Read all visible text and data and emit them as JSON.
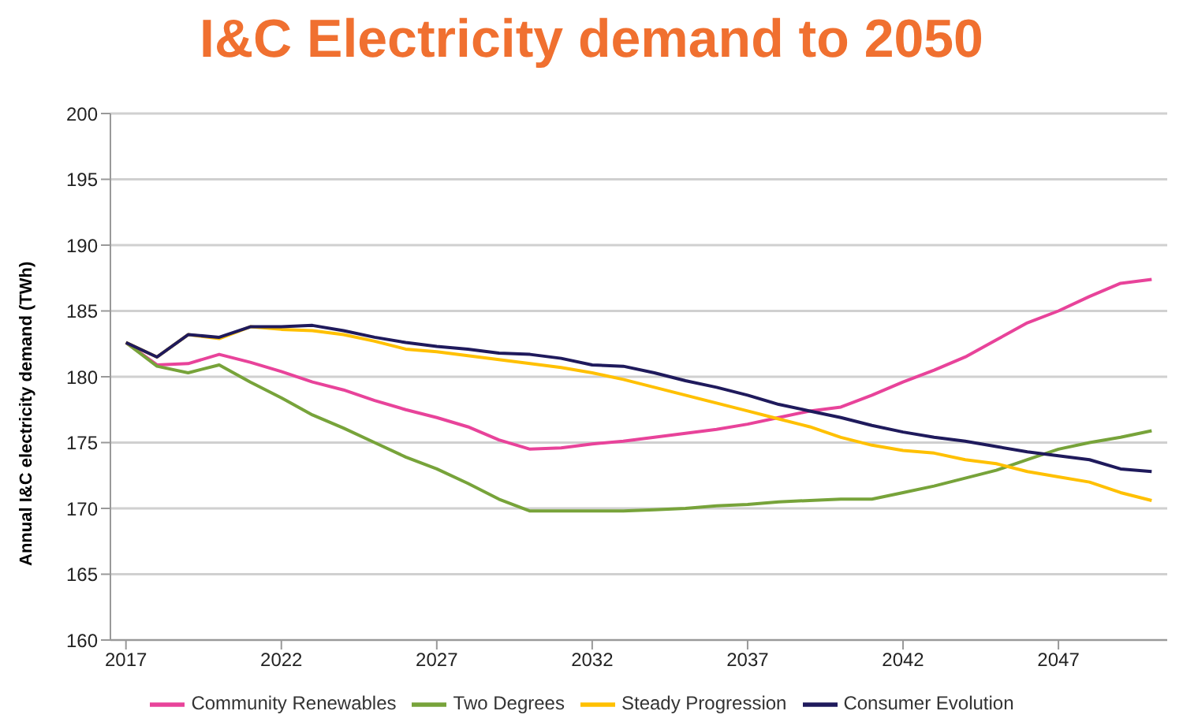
{
  "chart_data": {
    "type": "line",
    "title": "I&C Electricity demand to 2050",
    "ylabel": "Annual I&C electricity demand (TWh)",
    "x": [
      2017,
      2018,
      2019,
      2020,
      2021,
      2022,
      2023,
      2024,
      2025,
      2026,
      2027,
      2028,
      2029,
      2030,
      2031,
      2032,
      2033,
      2034,
      2035,
      2036,
      2037,
      2038,
      2039,
      2040,
      2041,
      2042,
      2043,
      2044,
      2045,
      2046,
      2047,
      2048,
      2049,
      2050
    ],
    "xlim": [
      2016.5,
      2050.5
    ],
    "xticks": [
      2017,
      2022,
      2027,
      2032,
      2037,
      2042,
      2047
    ],
    "ylim": [
      160,
      200
    ],
    "yticks": [
      160,
      165,
      170,
      175,
      180,
      185,
      190,
      195,
      200
    ],
    "grid": "y",
    "legend": "bottom",
    "marker": "none",
    "line_style": "solid",
    "series": [
      {
        "name": "Community Renewables",
        "color": "#e8439a",
        "values": [
          182.6,
          180.9,
          181.0,
          181.7,
          181.1,
          180.4,
          179.6,
          179.0,
          178.2,
          177.5,
          176.9,
          176.2,
          175.2,
          174.5,
          174.6,
          174.9,
          175.1,
          175.4,
          175.7,
          176.0,
          176.4,
          176.9,
          177.4,
          177.7,
          178.6,
          179.6,
          180.5,
          181.5,
          182.8,
          184.1,
          185.0,
          186.1,
          187.1,
          187.4
        ]
      },
      {
        "name": "Two Degrees",
        "color": "#77a33a",
        "values": [
          182.6,
          180.8,
          180.3,
          180.9,
          179.6,
          178.4,
          177.1,
          176.1,
          175.0,
          173.9,
          173.0,
          171.9,
          170.7,
          169.8,
          169.8,
          169.8,
          169.8,
          169.9,
          170.0,
          170.2,
          170.3,
          170.5,
          170.6,
          170.7,
          170.7,
          171.2,
          171.7,
          172.3,
          172.9,
          173.7,
          174.5,
          175.0,
          175.4,
          175.9
        ]
      },
      {
        "name": "Steady Progression",
        "color": "#ffc000",
        "values": [
          182.6,
          181.5,
          183.2,
          182.9,
          183.8,
          183.6,
          183.5,
          183.2,
          182.7,
          182.1,
          181.9,
          181.6,
          181.3,
          181.0,
          180.7,
          180.3,
          179.8,
          179.2,
          178.6,
          178.0,
          177.4,
          176.8,
          176.2,
          175.4,
          174.8,
          174.4,
          174.2,
          173.7,
          173.4,
          172.8,
          172.4,
          172.0,
          171.2,
          170.6
        ]
      },
      {
        "name": "Consumer Evolution",
        "color": "#1f1a5c",
        "values": [
          182.6,
          181.5,
          183.2,
          183.0,
          183.8,
          183.8,
          183.9,
          183.5,
          183.0,
          182.6,
          182.3,
          182.1,
          181.8,
          181.7,
          181.4,
          180.9,
          180.8,
          180.3,
          179.7,
          179.2,
          178.6,
          177.9,
          177.4,
          176.9,
          176.3,
          175.8,
          175.4,
          175.1,
          174.7,
          174.3,
          174.0,
          173.7,
          173.0,
          172.8
        ]
      }
    ]
  }
}
